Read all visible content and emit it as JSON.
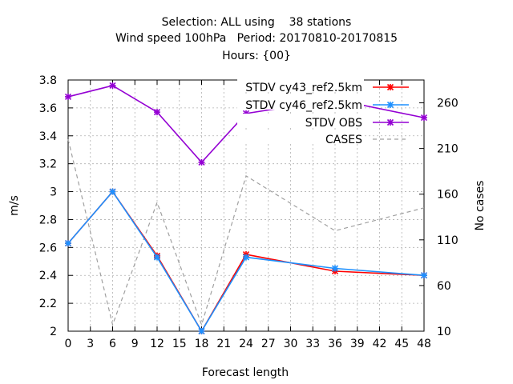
{
  "chart_data": {
    "type": "line",
    "title_lines": [
      "Selection: ALL using    38 stations",
      "Wind speed 100hPa   Period: 20170810-20170815",
      "Hours: {00}"
    ],
    "xlabel": "Forecast length",
    "ylabel": "m/s",
    "y2label": "No cases",
    "xlim": [
      0,
      48
    ],
    "xticks": [
      0,
      3,
      6,
      9,
      12,
      15,
      18,
      21,
      24,
      27,
      30,
      33,
      36,
      39,
      42,
      45,
      48
    ],
    "ylim": [
      2,
      3.8
    ],
    "yticks": [
      2,
      2.2,
      2.4,
      2.6,
      2.8,
      3,
      3.2,
      3.4,
      3.6,
      3.8
    ],
    "ytick_labels": [
      "2",
      "2.2",
      "2.4",
      "2.6",
      "2.8",
      "3",
      "3.2",
      "3.4",
      "3.6",
      "3.8"
    ],
    "y2lim": [
      10,
      285
    ],
    "y2ticks": [
      10,
      60,
      110,
      160,
      210,
      260
    ],
    "grid": true,
    "legend_position": "top-right",
    "series": [
      {
        "name": "STDV cy43_ref2.5km",
        "color": "#ff0000",
        "axis": "y1",
        "style": "line-points",
        "x": [
          0,
          6,
          12,
          18,
          24,
          36,
          48
        ],
        "y": [
          2.63,
          3.0,
          2.54,
          2.0,
          2.55,
          2.43,
          2.4
        ]
      },
      {
        "name": "STDV cy46_ref2.5km",
        "color": "#1e90ff",
        "axis": "y1",
        "style": "line-points",
        "x": [
          0,
          6,
          12,
          18,
          24,
          36,
          48
        ],
        "y": [
          2.63,
          3.0,
          2.53,
          2.0,
          2.53,
          2.45,
          2.4
        ]
      },
      {
        "name": "STDV OBS",
        "color": "#9400d3",
        "axis": "y1",
        "style": "line-points",
        "x": [
          0,
          6,
          12,
          18,
          24,
          36,
          48
        ],
        "y": [
          3.68,
          3.76,
          3.57,
          3.21,
          3.56,
          3.66,
          3.53
        ]
      },
      {
        "name": "CASES",
        "color": "#a0a0a0",
        "axis": "y2",
        "style": "dashed",
        "x": [
          0,
          6,
          12,
          18,
          24,
          36,
          48
        ],
        "y": [
          220,
          17,
          151,
          17,
          180,
          120,
          145
        ]
      }
    ]
  }
}
